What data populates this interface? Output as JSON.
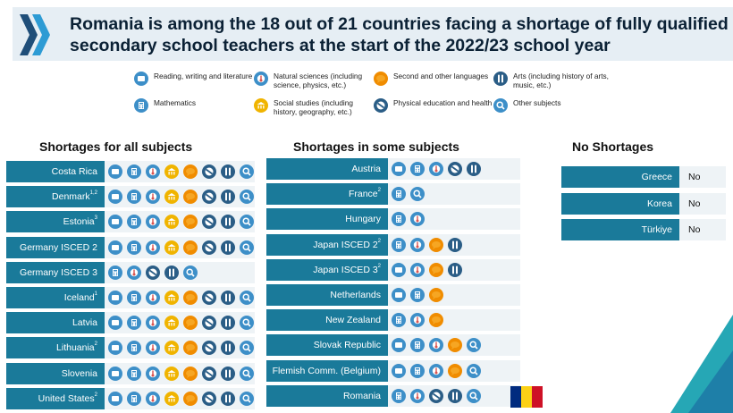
{
  "title": "Romania is among the 18 out of 21 countries facing a shortage of fully qualified secondary school teachers at the start of the 2022/23 school year",
  "legend": [
    {
      "key": "read",
      "label": "Reading, writing and literature",
      "icon": "book-icon"
    },
    {
      "key": "sci",
      "label": "Natural sciences (including science, physics, etc.)",
      "icon": "thermometer-icon"
    },
    {
      "key": "lang",
      "label": "Second and other languages",
      "icon": "speech-icon"
    },
    {
      "key": "arts",
      "label": "Arts (including history of arts, music, etc.)",
      "icon": "paintbrush-icon"
    },
    {
      "key": "math",
      "label": "Mathematics",
      "icon": "calculator-icon"
    },
    {
      "key": "soc",
      "label": "Social studies (including history, geography, etc.)",
      "icon": "building-icon"
    },
    {
      "key": "pe",
      "label": "Physical education and health",
      "icon": "ball-icon"
    },
    {
      "key": "other",
      "label": "Other subjects",
      "icon": "magnifier-icon"
    }
  ],
  "sections": {
    "all": "Shortages for all subjects",
    "some": "Shortages in some subjects",
    "none": "No Shortages"
  },
  "shortages_all": [
    {
      "country": "Costa Rica",
      "sup": "",
      "subjects": [
        "read",
        "math",
        "sci",
        "soc",
        "lang",
        "pe",
        "arts",
        "other"
      ]
    },
    {
      "country": "Denmark",
      "sup": "1,2",
      "subjects": [
        "read",
        "math",
        "sci",
        "soc",
        "lang",
        "pe",
        "arts",
        "other"
      ]
    },
    {
      "country": "Estonia",
      "sup": "3",
      "subjects": [
        "read",
        "math",
        "sci",
        "soc",
        "lang",
        "pe",
        "arts",
        "other"
      ]
    },
    {
      "country": "Germany ISCED 2",
      "sup": "",
      "subjects": [
        "read",
        "math",
        "sci",
        "soc",
        "lang",
        "pe",
        "arts",
        "other"
      ]
    },
    {
      "country": "Germany ISCED 3",
      "sup": "",
      "subjects": [
        "math",
        "sci",
        "pe",
        "arts",
        "other"
      ]
    },
    {
      "country": "Iceland",
      "sup": "1",
      "subjects": [
        "read",
        "math",
        "sci",
        "soc",
        "lang",
        "pe",
        "arts",
        "other"
      ]
    },
    {
      "country": "Latvia",
      "sup": "",
      "subjects": [
        "read",
        "math",
        "sci",
        "soc",
        "lang",
        "pe",
        "arts",
        "other"
      ]
    },
    {
      "country": "Lithuania",
      "sup": "2",
      "subjects": [
        "read",
        "math",
        "sci",
        "soc",
        "lang",
        "pe",
        "arts",
        "other"
      ]
    },
    {
      "country": "Slovenia",
      "sup": "",
      "subjects": [
        "read",
        "math",
        "sci",
        "soc",
        "lang",
        "pe",
        "arts",
        "other"
      ]
    },
    {
      "country": "United States",
      "sup": "2",
      "subjects": [
        "read",
        "math",
        "sci",
        "soc",
        "lang",
        "pe",
        "arts",
        "other"
      ]
    }
  ],
  "shortages_some": [
    {
      "country": "Austria",
      "sup": "",
      "subjects": [
        "read",
        "math",
        "sci",
        "pe",
        "arts"
      ]
    },
    {
      "country": "France",
      "sup": "2",
      "subjects": [
        "math",
        "other"
      ]
    },
    {
      "country": "Hungary",
      "sup": "",
      "subjects": [
        "math",
        "sci"
      ]
    },
    {
      "country": "Japan ISCED 2",
      "sup": "2",
      "subjects": [
        "math",
        "sci",
        "lang",
        "arts"
      ]
    },
    {
      "country": "Japan ISCED 3",
      "sup": "2",
      "subjects": [
        "read",
        "sci",
        "lang",
        "arts"
      ]
    },
    {
      "country": "Netherlands",
      "sup": "",
      "subjects": [
        "read",
        "math",
        "lang"
      ]
    },
    {
      "country": "New Zealand",
      "sup": "",
      "subjects": [
        "math",
        "sci",
        "lang"
      ]
    },
    {
      "country": "Slovak Republic",
      "sup": "",
      "subjects": [
        "read",
        "math",
        "sci",
        "lang",
        "other"
      ]
    },
    {
      "country": "Flemish Comm. (Belgium)",
      "sup": "",
      "subjects": [
        "read",
        "math",
        "sci",
        "lang",
        "other"
      ]
    },
    {
      "country": "Romania",
      "sup": "",
      "subjects": [
        "math",
        "sci",
        "pe",
        "arts",
        "other"
      ]
    }
  ],
  "no_shortages": [
    {
      "country": "Greece",
      "value": "No"
    },
    {
      "country": "Korea",
      "value": "No"
    },
    {
      "country": "Türkiye",
      "value": "No"
    }
  ],
  "colors": {
    "brand_teal": "#1a7a9a",
    "icon_blue": "#3d8fc8",
    "flag": [
      "#002b7f",
      "#fcd116",
      "#ce1126"
    ]
  }
}
